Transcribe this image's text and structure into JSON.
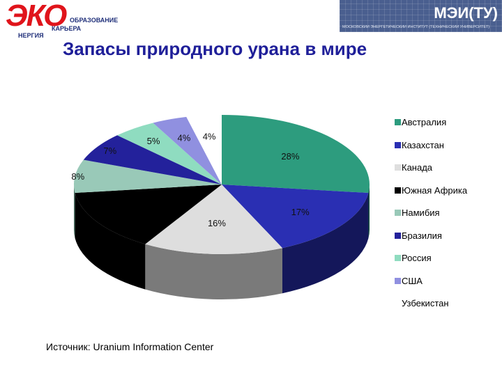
{
  "header": {
    "left_logo": {
      "brand": "ЭКО",
      "line1": "ОБРАЗОВАНИЕ",
      "line2": "КАРЬЕРА",
      "line3": "НЕРГИЯ"
    },
    "right_logo": {
      "brand": "МЭИ(ТУ)",
      "subtitle": "МОСКОВСКИЙ ЭНЕРГЕТИЧЕСКИЙ ИНСТИТУТ (ТЕХНИЧЕСКИЙ УНИВЕРСИТЕТ)"
    }
  },
  "slide": {
    "title": "Запасы природного урана в мире",
    "source": "Источник: Uranium Information Center"
  },
  "chart_data": {
    "type": "pie",
    "title": "Запасы природного урана в мире",
    "unit": "%",
    "slices": [
      {
        "label": "Австралия",
        "value": 28,
        "label_text": "28%",
        "color": "#2d9c7e",
        "side": "#0f4a3b"
      },
      {
        "label": "Казахстан",
        "value": 17,
        "label_text": "17%",
        "color": "#2a2fb3",
        "side": "#14175a"
      },
      {
        "label": "Канада",
        "value": 16,
        "label_text": "16%",
        "color": "#dedede",
        "side": "#7a7a7a"
      },
      {
        "label": "Южная Африка",
        "value": 15,
        "label_text": "",
        "color": "#000000",
        "side": "#000000"
      },
      {
        "label": "Намибия",
        "value": 8,
        "label_text": "8%",
        "color": "#99c9b8",
        "side": "#4b6e61"
      },
      {
        "label": "Бразилия",
        "value": 7,
        "label_text": "7%",
        "color": "#23219b",
        "side": "#10104d"
      },
      {
        "label": "Россия",
        "value": 5,
        "label_text": "5%",
        "color": "#8fdcc0",
        "side": "#4b7a69"
      },
      {
        "label": "США",
        "value": 4,
        "label_text": "4%",
        "color": "#9090e0",
        "side": "#4a4a7a"
      },
      {
        "label": "Узбекистан",
        "value": 4,
        "label_text": "4%",
        "color": "#ffffff",
        "side": "#ffffff"
      }
    ],
    "legend_position": "right",
    "legend": [
      {
        "label": "Австралия",
        "color": "#2d9c7e"
      },
      {
        "label": "Казахстан",
        "color": "#2a2fb3"
      },
      {
        "label": "Канада",
        "color": "#dedede"
      },
      {
        "label": "Южная Африка",
        "color": "#000000"
      },
      {
        "label": "Намибия",
        "color": "#99c9b8"
      },
      {
        "label": "Бразилия",
        "color": "#23219b"
      },
      {
        "label": "Россия",
        "color": "#8fdcc0"
      },
      {
        "label": "США",
        "color": "#9090e0"
      },
      {
        "label": "Узбекистан",
        "color": "#ffffff"
      }
    ]
  }
}
